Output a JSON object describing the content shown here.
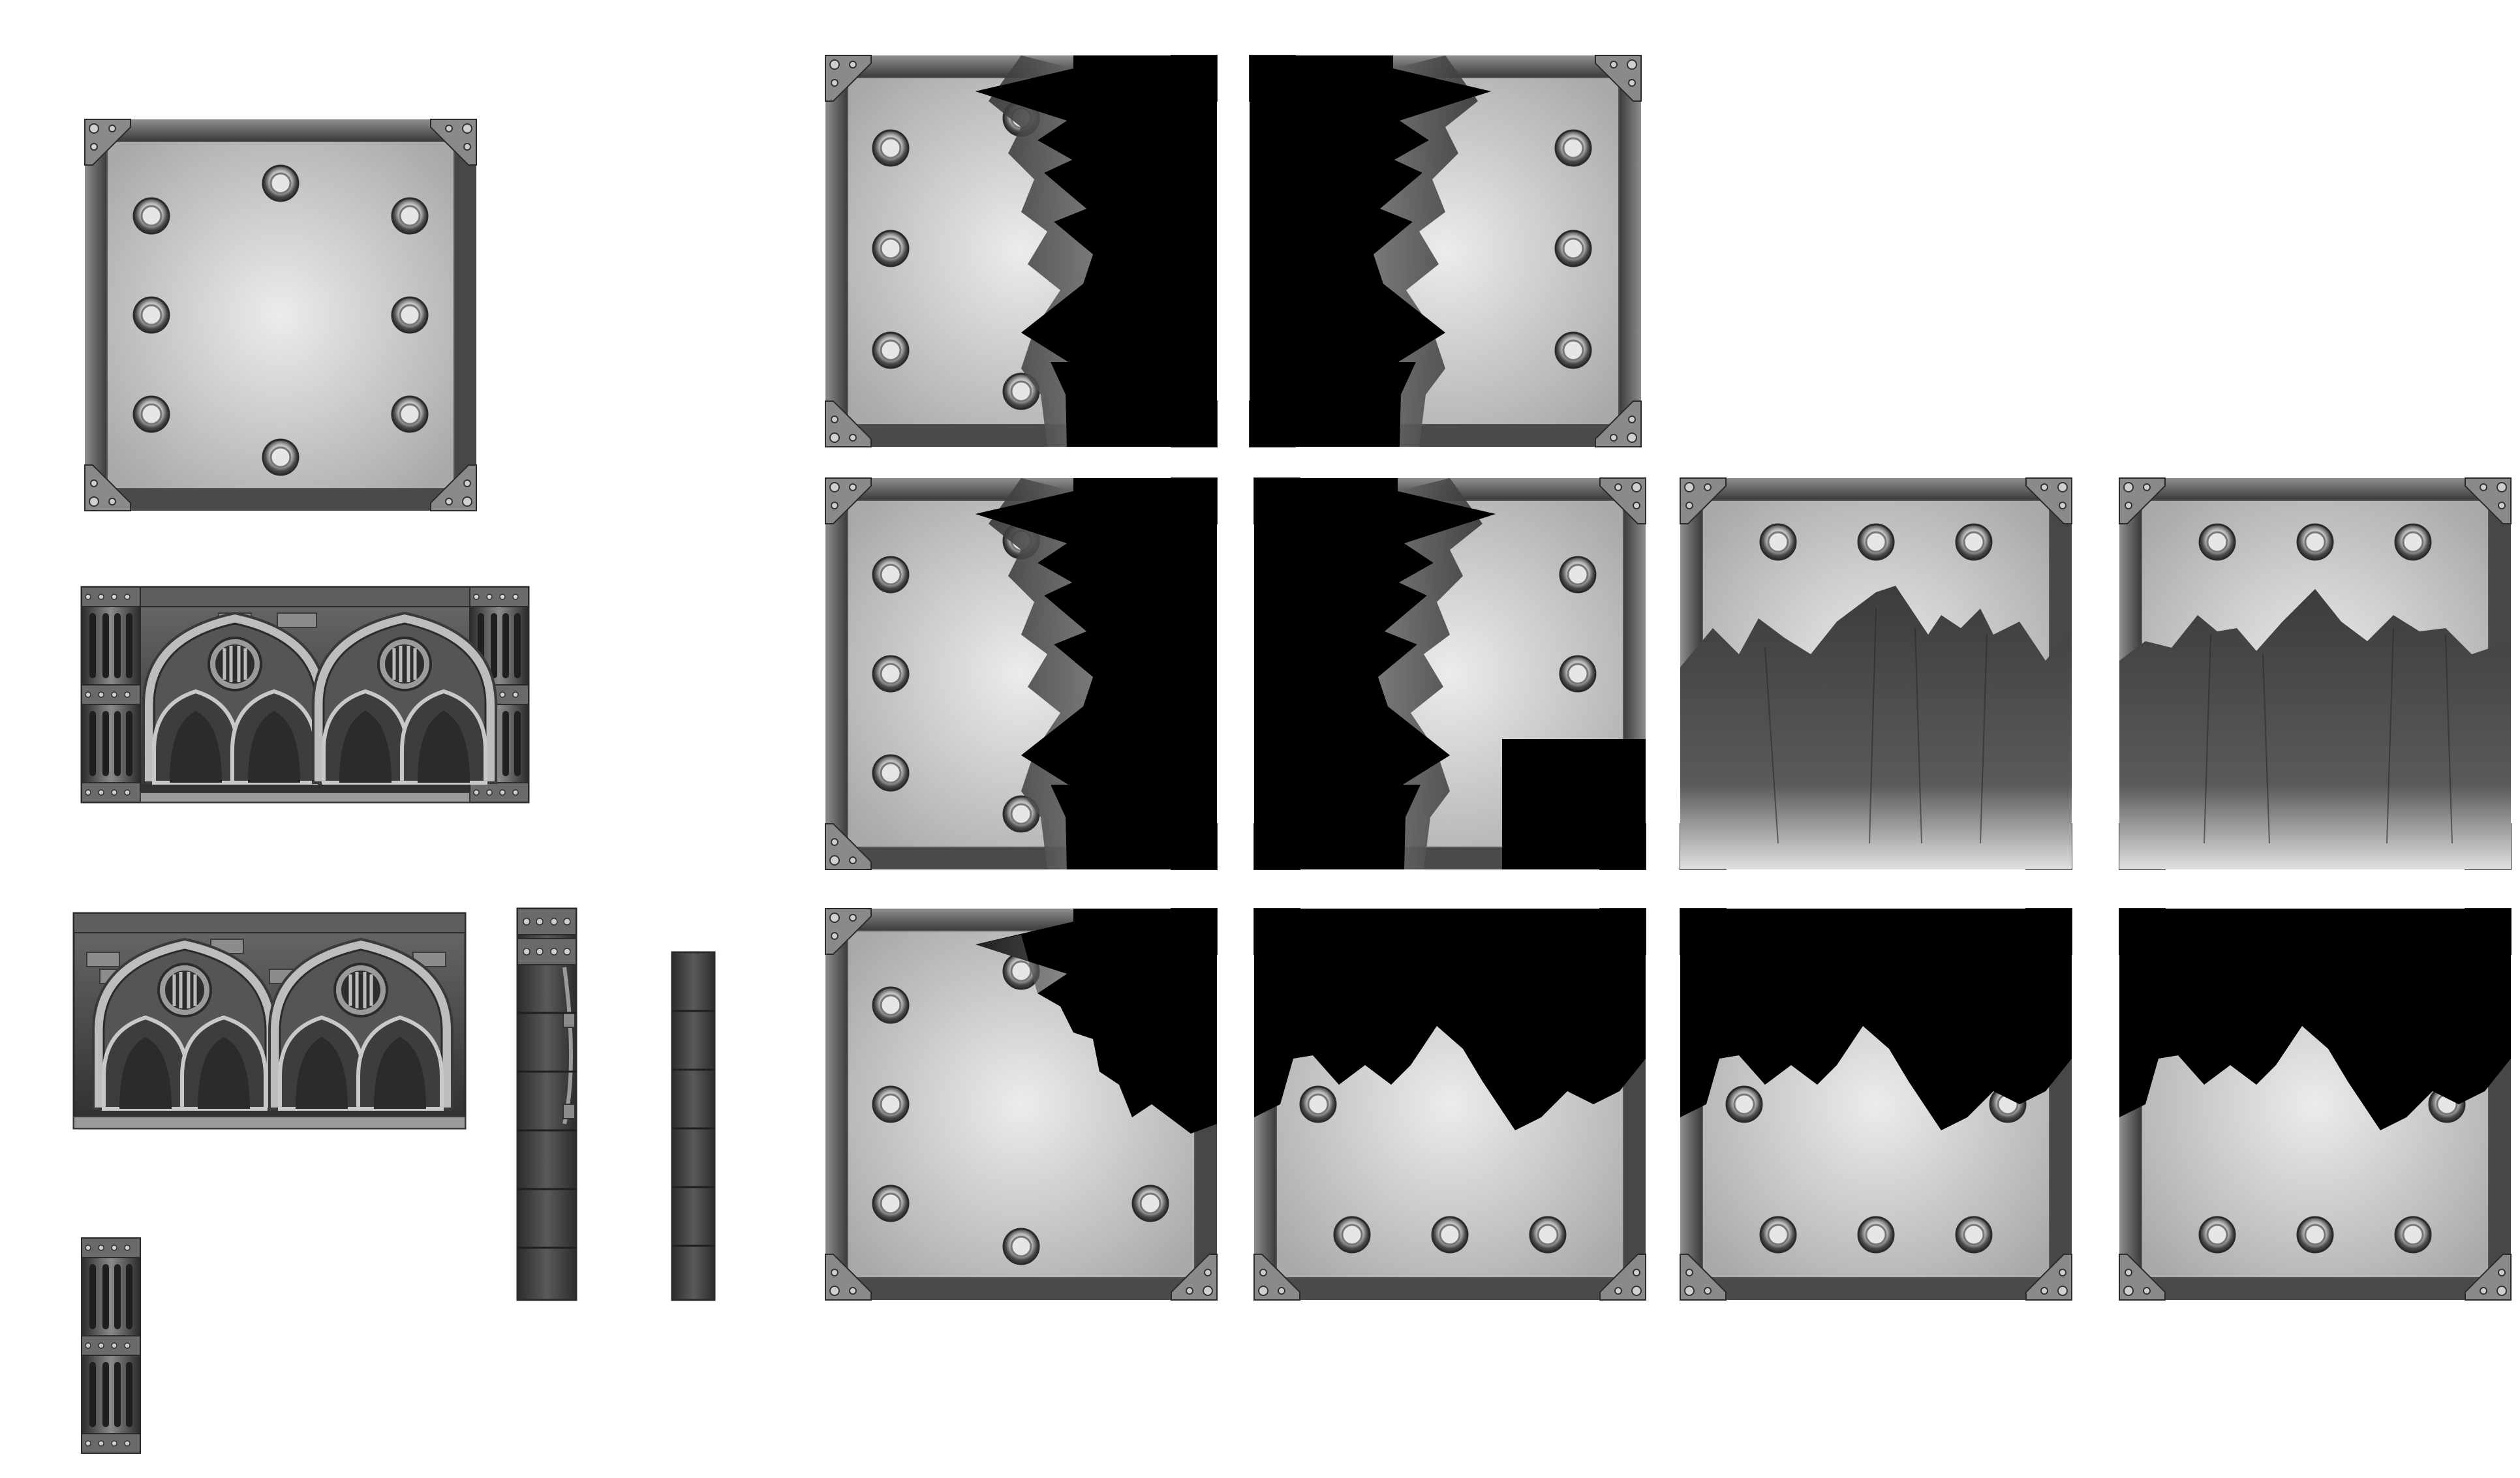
{
  "sheet": {
    "background": "#ffffff",
    "palette": {
      "frame_dark": "#3a3a3a",
      "frame_mid": "#6b6b6b",
      "frame_light": "#9a9a9a",
      "panel_center": "#e8e8e8",
      "panel_edge": "#a9a9a9",
      "void": "#000000",
      "metal_dark": "#2b2b2b"
    }
  },
  "tiles": [
    {
      "name": "floor-panel-full",
      "icon": "riveted-square-panel"
    },
    {
      "name": "gothic-wall-with-pillars",
      "icon": "gothic-arch-wall"
    },
    {
      "name": "gothic-wall",
      "icon": "gothic-arch-wall"
    },
    {
      "name": "pillar-short",
      "icon": "fluted-pillar"
    },
    {
      "name": "wall-edge-vertical",
      "icon": "vertical-beam"
    },
    {
      "name": "wall-segment-vertical",
      "icon": "vertical-beam"
    },
    {
      "name": "torn-panel-left-1",
      "icon": "torn-panel-right-void"
    },
    {
      "name": "torn-panel-right-1",
      "icon": "torn-panel-left-void"
    },
    {
      "name": "torn-panel-left-2",
      "icon": "torn-panel-right-void"
    },
    {
      "name": "torn-panel-right-2",
      "icon": "torn-panel-left-void"
    },
    {
      "name": "torn-panel-bottom-1",
      "icon": "torn-panel-bottom-shadow"
    },
    {
      "name": "torn-panel-bottom-2",
      "icon": "torn-panel-bottom-shadow"
    },
    {
      "name": "torn-panel-corner",
      "icon": "torn-panel-corner-void"
    },
    {
      "name": "torn-panel-top-1",
      "icon": "torn-panel-top-void"
    },
    {
      "name": "torn-panel-top-2",
      "icon": "torn-panel-top-void"
    },
    {
      "name": "torn-panel-top-3",
      "icon": "torn-panel-top-void"
    }
  ]
}
